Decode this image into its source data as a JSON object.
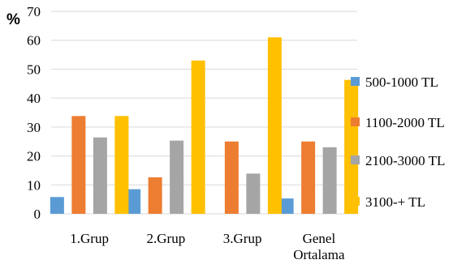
{
  "chart_data": {
    "type": "bar",
    "ylabel": "%",
    "xlabel": "",
    "ylim": [
      0,
      70
    ],
    "ytick_step": 10,
    "yticks": [
      "0",
      "10",
      "20",
      "30",
      "40",
      "50",
      "60",
      "70"
    ],
    "grid": true,
    "legend_position": "right",
    "categories": [
      [
        "1.Grup"
      ],
      [
        "2.Grup"
      ],
      [
        "3.Grup"
      ],
      [
        "Genel",
        "Ortalama"
      ]
    ],
    "series": [
      {
        "name": "500-1000 TL",
        "color": "#5b9bd5",
        "values": [
          5.8,
          8.5,
          0,
          5.3
        ]
      },
      {
        "name": "1100-2000 TL",
        "color": "#ed7d31",
        "values": [
          33.8,
          12.6,
          25.0,
          25.0
        ]
      },
      {
        "name": "2100-3000 TL",
        "color": "#a5a5a5",
        "values": [
          26.4,
          25.3,
          13.9,
          23.0
        ]
      },
      {
        "name": "3100-+ TL",
        "color": "#ffc000",
        "values": [
          33.8,
          53.0,
          61.0,
          46.3
        ]
      }
    ]
  }
}
